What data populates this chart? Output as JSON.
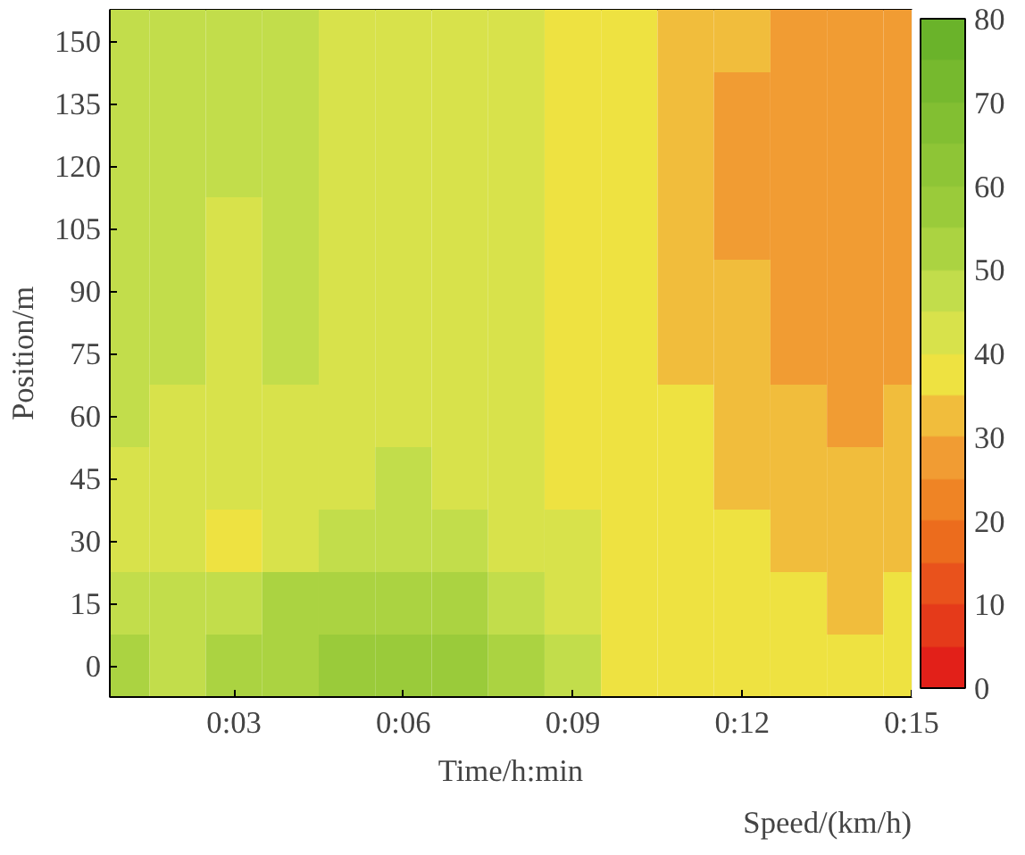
{
  "chart_data": {
    "type": "heatmap",
    "xlabel": "Time/h:min",
    "ylabel": "Position/m",
    "clabel": "Speed/(km/h)",
    "x": [
      1,
      2,
      3,
      4,
      5,
      6,
      7,
      8,
      9,
      10,
      11,
      12,
      13,
      14,
      15
    ],
    "y_categories": [
      "150",
      "135",
      "120",
      "105",
      "90",
      "75",
      "60",
      "45",
      "30",
      "15",
      "0"
    ],
    "xlim": [
      0.8,
      15
    ],
    "xticks": [
      {
        "value": 3,
        "label": "0:03"
      },
      {
        "value": 6,
        "label": "0:06"
      },
      {
        "value": 9,
        "label": "0:09"
      },
      {
        "value": 12,
        "label": "0:12"
      },
      {
        "value": 15,
        "label": "0:15"
      }
    ],
    "clim": [
      0,
      80
    ],
    "cticks": [
      0,
      10,
      20,
      30,
      40,
      50,
      60,
      70,
      80
    ],
    "cells": [
      [
        48,
        48,
        48,
        47,
        43,
        43,
        43,
        42,
        38,
        37,
        33,
        30,
        29,
        29,
        29
      ],
      [
        48,
        48,
        48,
        47,
        43,
        43,
        43,
        42,
        38,
        37,
        33,
        29,
        28,
        28,
        29
      ],
      [
        48,
        48,
        46,
        47,
        43,
        43,
        43,
        42,
        38,
        37,
        33,
        28,
        27,
        26,
        28
      ],
      [
        48,
        47,
        44,
        47,
        43,
        43,
        43,
        42,
        38,
        36,
        33,
        29,
        27,
        26,
        28
      ],
      [
        48,
        47,
        44,
        47,
        43,
        43,
        43,
        42,
        38,
        36,
        33,
        30,
        28,
        27,
        28
      ],
      [
        47,
        46,
        44,
        45,
        43,
        43,
        43,
        42,
        38,
        36,
        34,
        31,
        29,
        28,
        29
      ],
      [
        45,
        44,
        43,
        43,
        43,
        44,
        43,
        42,
        38,
        37,
        35,
        32,
        30,
        29,
        30
      ],
      [
        43,
        43,
        43,
        43,
        44,
        45,
        43,
        42,
        39,
        37,
        36,
        34,
        32,
        31,
        32
      ],
      [
        42,
        43,
        38,
        42,
        46,
        47,
        45,
        43,
        40,
        37,
        37,
        36,
        34,
        32,
        34
      ],
      [
        46,
        48,
        45,
        50,
        53,
        54,
        52,
        48,
        44,
        37,
        37,
        37,
        36,
        33,
        36
      ],
      [
        50,
        48,
        50,
        52,
        56,
        57,
        55,
        50,
        47,
        38,
        37,
        37,
        37,
        37,
        37
      ]
    ],
    "grid": false
  }
}
